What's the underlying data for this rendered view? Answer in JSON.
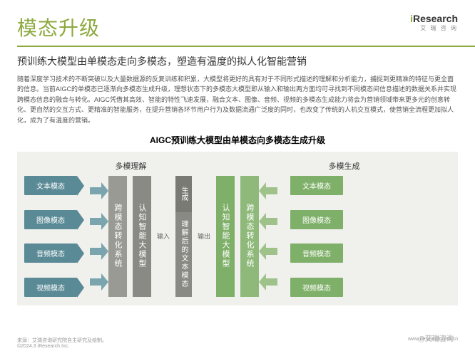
{
  "colors": {
    "accent": "#8ca93e",
    "teal": "#5a8a96",
    "teal_light": "#7aa5af",
    "grey": "#9a9a94",
    "grey_mid": "#8a8a84",
    "grey_dark": "#7a7a74",
    "green": "#7fb069",
    "green_mid": "#8fb97a",
    "green_light": "#9fc28b",
    "green_pale": "#afcb9c",
    "panel_bg": "#f0f0ed"
  },
  "header": {
    "title": "模态升级",
    "logo": "iResearch",
    "logo_sub": "艾 瑞 咨 询"
  },
  "subtitle": "预训练大模型由单模态走向多模态，塑造有温度的拟人化智能营销",
  "body": "随着深度学习技术的不断突破以及大量数据源的反复训练和积累，大模型将更好的具有对于不同形式描述的理解和分析能力，捕捉到更精准的特征与更全面的信息。当前AIGC的单模态已逐渐向多模态生成升级，理想状态下的多模态大模型即从输入和输出两方面均可寻找到不同模态间信息描述的数据关系并实现跨模态信息的融合与转化。AIGC凭借其高效、智能的特性飞速发展，融合文本、图像、音频、视频的多模态生成能力将会为营销领域带来更多元的创意转化、更自然的交互方式、更精准的智能服务，在提升营销各环节用户行为及数据流通广泛度的同时，也改变了传统的人机交互模式，使营销全流程更加拟人化，成为了有温度的营销。",
  "diagram": {
    "title": "AIGC预训练大模型由单模态向多模态生成升级",
    "section_left": "多模理解",
    "section_right": "多模生成",
    "left_nodes": [
      "文本模态",
      "图像模态",
      "音频模态",
      "视频模态"
    ],
    "right_nodes": [
      "文本模态",
      "图像模态",
      "音频模态",
      "视频模态"
    ],
    "conv_box": "跨模态转化系统",
    "cog_box": "认知智能大模型",
    "input_label": "输入",
    "output_label": "输出",
    "gen_top": "生成",
    "gen_bot": "理解后的文本模态",
    "cog_box2": "认知智能大模型",
    "conv_box2": "跨模态转化系统"
  },
  "footer": {
    "source": "来源：艾瑞咨询研究院自主研究及绘制。",
    "copyright": "©2024.3 iResearch Inc.",
    "site": "www.iresearch.com.cn"
  },
  "watermark": "@艾瑞咨询"
}
